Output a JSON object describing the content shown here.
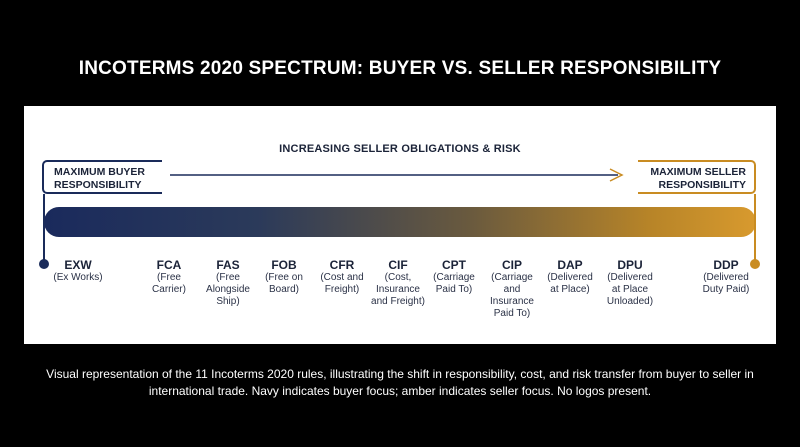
{
  "title": "INCOTERMS 2020 SPECTRUM: BUYER VS. SELLER RESPONSIBILITY",
  "arrow_label": "INCREASING SELLER OBLIGATIONS & RISK",
  "buyer_box": "MAXIMUM BUYER\nRESPONSIBILITY",
  "seller_box": "MAXIMUM SELLER\nRESPONSIBILITY",
  "colors": {
    "buyer": "#1a2b5a",
    "seller": "#c98c22"
  },
  "terms": [
    {
      "code": "EXW",
      "desc": "(Ex Works)"
    },
    {
      "code": "FCA",
      "desc": "(Free\nCarrier)"
    },
    {
      "code": "FAS",
      "desc": "(Free\nAlongside\nShip)"
    },
    {
      "code": "FOB",
      "desc": "(Free on\nBoard)"
    },
    {
      "code": "CFR",
      "desc": "(Cost and\nFreight)"
    },
    {
      "code": "CIF",
      "desc": "(Cost,\nInsurance\nand Freight)"
    },
    {
      "code": "CPT",
      "desc": "(Carriage\nPaid To)"
    },
    {
      "code": "CIP",
      "desc": "(Carriage\nand\nInsurance\nPaid To)"
    },
    {
      "code": "DAP",
      "desc": "(Delivered\nat Place)"
    },
    {
      "code": "DPU",
      "desc": "(Delivered\nat Place\nUnloaded)"
    },
    {
      "code": "DDP",
      "desc": "(Delivered\nDuty Paid)"
    }
  ],
  "caption": "Visual representation of the 11 Incoterms 2020 rules, illustrating the shift in responsibility, cost, and risk transfer from buyer to seller in international trade. Navy indicates buyer focus; amber indicates seller focus. No logos present."
}
